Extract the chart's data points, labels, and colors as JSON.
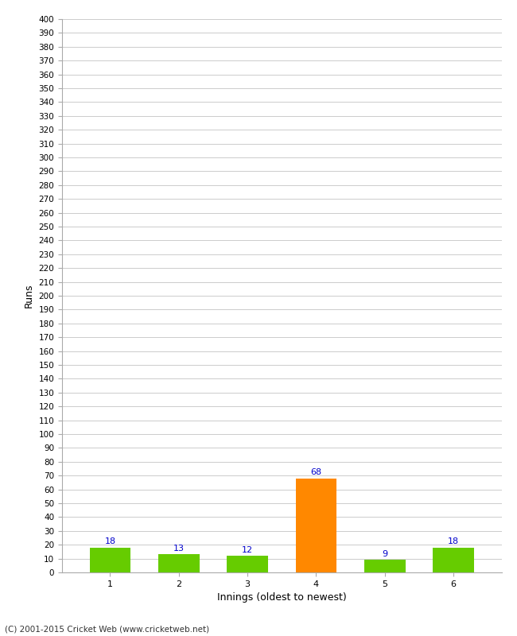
{
  "title": "",
  "categories": [
    1,
    2,
    3,
    4,
    5,
    6
  ],
  "values": [
    18,
    13,
    12,
    68,
    9,
    18
  ],
  "bar_colors": [
    "#66cc00",
    "#66cc00",
    "#66cc00",
    "#ff8800",
    "#66cc00",
    "#66cc00"
  ],
  "xlabel": "Innings (oldest to newest)",
  "ylabel": "Runs",
  "ylim": [
    0,
    400
  ],
  "label_color": "#0000cc",
  "footer": "(C) 2001-2015 Cricket Web (www.cricketweb.net)",
  "background_color": "#ffffff",
  "grid_color": "#cccccc"
}
